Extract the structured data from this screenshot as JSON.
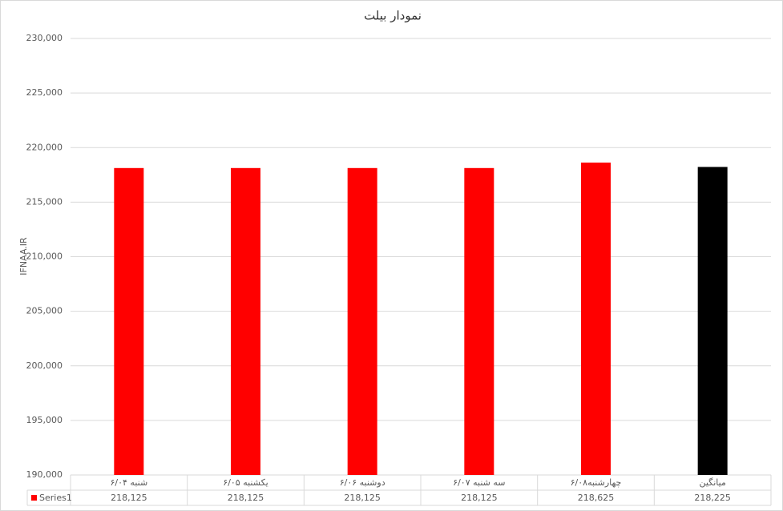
{
  "chart_data": {
    "type": "bar",
    "title": "نمودار بیلت",
    "y_label": "IFNAA.IR",
    "categories": [
      "شنبه ۶/۰۴",
      "یکشنبه ۶/۰۵",
      "دوشنبه ۶/۰۶",
      "سه شنبه ۶/۰۷",
      "چهارشنبه۶/۰۸",
      "میانگین"
    ],
    "series": [
      {
        "name": "Series1",
        "color": "#ff0000",
        "point_colors": [
          "#ff0000",
          "#ff0000",
          "#ff0000",
          "#ff0000",
          "#ff0000",
          "#000000"
        ],
        "values": [
          218125,
          218125,
          218125,
          218125,
          218625,
          218225
        ],
        "value_labels": [
          "218,125",
          "218,125",
          "218,125",
          "218,125",
          "218,625",
          "218,225"
        ]
      }
    ],
    "ylim": [
      190000,
      230000
    ],
    "yticks": [
      {
        "value": 190000,
        "label": "190,000"
      },
      {
        "value": 195000,
        "label": "195,000"
      },
      {
        "value": 200000,
        "label": "200,000"
      },
      {
        "value": 205000,
        "label": "205,000"
      },
      {
        "value": 210000,
        "label": "210,000"
      },
      {
        "value": 215000,
        "label": "215,000"
      },
      {
        "value": 220000,
        "label": "220,000"
      },
      {
        "value": 225000,
        "label": "225,000"
      },
      {
        "value": 230000,
        "label": "230,000"
      }
    ],
    "grid": true,
    "data_table": true
  }
}
